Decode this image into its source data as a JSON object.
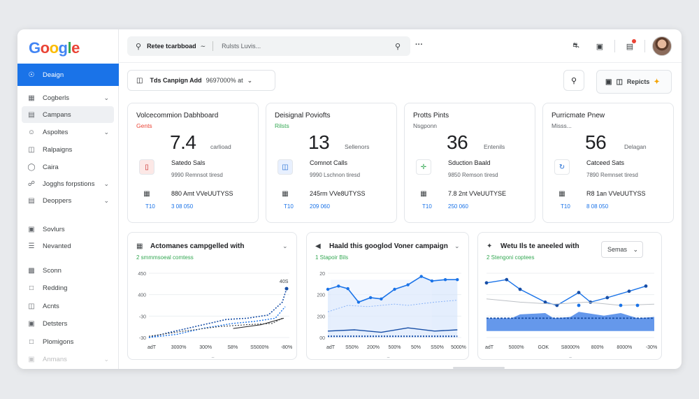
{
  "brand": {
    "letters": [
      {
        "ch": "G",
        "color": "#4285f4"
      },
      {
        "ch": "o",
        "color": "#ea4335"
      },
      {
        "ch": "o",
        "color": "#fbbc05"
      },
      {
        "ch": "g",
        "color": "#4285f4"
      },
      {
        "ch": "l",
        "color": "#34a853"
      },
      {
        "ch": "e",
        "color": "#ea4335"
      }
    ]
  },
  "sidebar": {
    "items": [
      {
        "label": "Deaign",
        "icon": "compass-icon",
        "active": true
      },
      {
        "label": "Cogberls",
        "icon": "grid-icon",
        "chevron": true
      },
      {
        "label": "Campans",
        "icon": "chart-icon",
        "highlight": true
      },
      {
        "label": "Aspoltes",
        "icon": "user-icon",
        "chevron": true
      },
      {
        "label": "Ralpaigns",
        "icon": "doc-icon"
      },
      {
        "label": "Caira",
        "icon": "bulb-icon"
      },
      {
        "label": "Jogghs forpstions",
        "icon": "share-icon",
        "chevron": true
      },
      {
        "label": "Deoppers",
        "icon": "layers-icon",
        "chevron": true
      },
      {
        "label": "Sovlurs",
        "icon": "book-icon"
      },
      {
        "label": "Nevanted",
        "icon": "list-icon"
      },
      {
        "label": "Sconn",
        "icon": "tv-icon"
      },
      {
        "label": "Redding",
        "icon": "folder-icon"
      },
      {
        "label": "Acnts",
        "icon": "file-icon"
      },
      {
        "label": "Detsters",
        "icon": "clip-icon"
      },
      {
        "label": "Plomigons",
        "icon": "chat-icon"
      },
      {
        "label": "Anmans",
        "icon": "lock-icon",
        "chevron": true
      }
    ]
  },
  "header": {
    "search_label": "Retee tcarbboad",
    "search_query": "Rulsts Luvis...",
    "more": "···"
  },
  "filter": {
    "label": "Tds Canpign Add",
    "value": "9697000% at"
  },
  "reports_label": "Repicts",
  "kpis": [
    {
      "title": "Volcecommion Dabhboard",
      "sub": "Gents",
      "sub_color": "#ea4335",
      "value": "7.4",
      "unit": "carlioad",
      "r1": "Satedo Sals",
      "r1b": "9990 Remnsot tiresd",
      "r2": "880 Amt VVeUUTYSS",
      "foot": "T10",
      "foot2": "3 08 050",
      "icon1_bg": "#fce8e6",
      "icon1_color": "#c5221f"
    },
    {
      "title": "Deisignal Poviofts",
      "sub": "Rilsts",
      "sub_color": "#34a853",
      "value": "13",
      "unit": "Sellenors",
      "r1": "Comnot Calls",
      "r1b": "9990 Lschnon tiresd",
      "r2": "245rm VVe8UTYSS",
      "foot": "T10",
      "foot2": "209 060",
      "icon1_bg": "#e8f0fe",
      "icon1_color": "#1967d2"
    },
    {
      "title": "Protts Pints",
      "sub": "Nsgponn",
      "sub_color": "#5f6368",
      "value": "36",
      "unit": "Entenils",
      "r1": "Sduction Baald",
      "r1b": "9850 Remson tiresd",
      "r2": "7.8 2nt VVeUUTYSE",
      "foot": "T10",
      "foot2": "250 060",
      "icon1_bg": "#ffffff",
      "icon1_color": "#34a853"
    },
    {
      "title": "Purricmate Pnew",
      "sub": "Misss...",
      "sub_color": "#5f6368",
      "value": "56",
      "unit": "Delagan",
      "r1": "Catceed Sats",
      "r1b": "7890 Remnset tiresd",
      "r2": "R8 1an VVeUUTYSS",
      "foot": "T10",
      "foot2": "8 08 050",
      "icon1_bg": "#ffffff",
      "icon1_color": "#1967d2"
    }
  ],
  "charts": [
    {
      "title": "Actomanes campgelled with",
      "sub": "2 smmmsoeal comtess",
      "ylabels": [
        "450",
        "400",
        "-30",
        "-30"
      ],
      "xlabels": [
        "adT",
        "3000%",
        "300%",
        "S8%",
        "S5000%",
        "-80%"
      ],
      "annot": "40S",
      "footer": "~"
    },
    {
      "title": "Haald this googlod Voner campaign",
      "sub": "1 Stapoir Bils",
      "ylabels": [
        "20",
        "200",
        "200",
        "00"
      ],
      "xlabels": [
        "adT",
        "S50%",
        "200%",
        "500%",
        "50%",
        "S50%",
        "5000%"
      ],
      "footer": "~"
    },
    {
      "title": "Wetu Ils te aneeled with",
      "sub": "2 Stengoni coptees",
      "select": "Semas",
      "ylabels": [],
      "xlabels": [
        "adT",
        "5000%",
        "GOK",
        "S8000%",
        "800%",
        "8000%",
        "-30%"
      ],
      "footer": "~"
    }
  ]
}
